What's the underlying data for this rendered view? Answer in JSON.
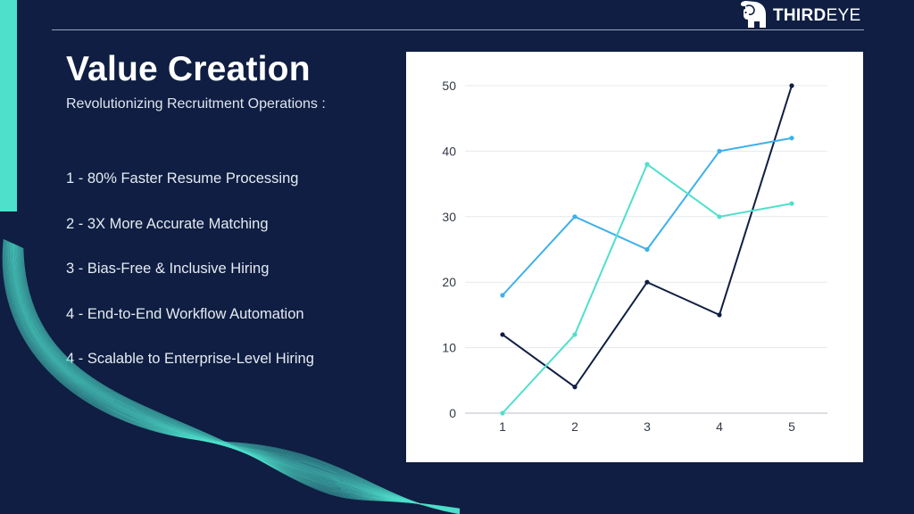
{
  "brand": {
    "logo_bold": "THIRD",
    "logo_light": "EYE"
  },
  "slide": {
    "title": "Value Creation",
    "subtitle": "Revolutionizing Recruitment Operations :",
    "points": [
      "1 - 80% Faster Resume Processing",
      "2 - 3X More Accurate Matching",
      "3 - Bias-Free & Inclusive Hiring",
      "4 - End-to-End Workflow Automation",
      "4 - Scalable to Enterprise-Level Hiring"
    ]
  },
  "colors": {
    "background": "#0f1e42",
    "accent": "#4fe0cc",
    "series_dark": "#0f1e42",
    "series_blue": "#3db0ea",
    "series_teal": "#4fe0cc"
  },
  "chart_data": {
    "type": "line",
    "x": [
      1,
      2,
      3,
      4,
      5
    ],
    "x_ticks": [
      "1",
      "2",
      "3",
      "4",
      "5"
    ],
    "y_ticks": [
      0,
      10,
      20,
      30,
      40,
      50
    ],
    "ylim": [
      0,
      50
    ],
    "grid": true,
    "legend": "none",
    "series": [
      {
        "color": "#0f1e42",
        "values": [
          12,
          4,
          20,
          15,
          50
        ]
      },
      {
        "color": "#3db0ea",
        "values": [
          18,
          30,
          25,
          40,
          42
        ]
      },
      {
        "color": "#4fe0cc",
        "values": [
          0,
          12,
          38,
          30,
          32
        ]
      }
    ]
  }
}
